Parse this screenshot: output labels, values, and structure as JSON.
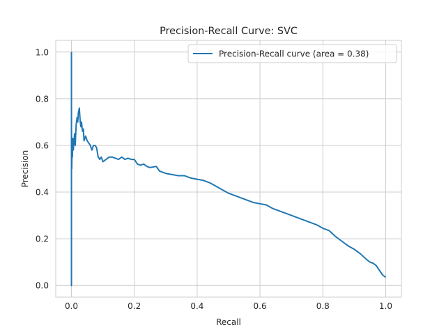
{
  "chart_data": {
    "type": "line",
    "title": "Precision-Recall Curve: SVC",
    "xlabel": "Recall",
    "ylabel": "Precision",
    "xlim": [
      -0.05,
      1.05
    ],
    "ylim": [
      -0.05,
      1.05
    ],
    "xticks": [
      0.0,
      0.2,
      0.4,
      0.6,
      0.8,
      1.0
    ],
    "xtick_labels": [
      "0.0",
      "0.2",
      "0.4",
      "0.6",
      "0.8",
      "1.0"
    ],
    "yticks": [
      0.0,
      0.2,
      0.4,
      0.6,
      0.8,
      1.0
    ],
    "ytick_labels": [
      "0.0",
      "0.2",
      "0.4",
      "0.6",
      "0.8",
      "1.0"
    ],
    "grid": true,
    "legend_position": "top-right",
    "series": [
      {
        "name": "Precision-Recall curve (area = 0.38)",
        "color": "#1f77b4",
        "x": [
          0.0,
          0.0,
          0.0,
          0.001,
          0.002,
          0.003,
          0.004,
          0.006,
          0.008,
          0.01,
          0.012,
          0.015,
          0.018,
          0.02,
          0.022,
          0.025,
          0.027,
          0.028,
          0.03,
          0.032,
          0.035,
          0.038,
          0.04,
          0.045,
          0.05,
          0.055,
          0.06,
          0.065,
          0.07,
          0.075,
          0.08,
          0.085,
          0.09,
          0.095,
          0.1,
          0.11,
          0.12,
          0.13,
          0.14,
          0.15,
          0.16,
          0.17,
          0.18,
          0.19,
          0.2,
          0.21,
          0.22,
          0.23,
          0.24,
          0.25,
          0.27,
          0.28,
          0.3,
          0.32,
          0.34,
          0.36,
          0.38,
          0.4,
          0.42,
          0.44,
          0.46,
          0.48,
          0.5,
          0.52,
          0.54,
          0.56,
          0.58,
          0.6,
          0.62,
          0.64,
          0.66,
          0.68,
          0.7,
          0.72,
          0.74,
          0.76,
          0.78,
          0.8,
          0.82,
          0.84,
          0.86,
          0.88,
          0.9,
          0.92,
          0.94,
          0.95,
          0.96,
          0.97,
          0.98,
          0.99,
          1.0
        ],
        "y": [
          1.0,
          0.0,
          0.67,
          0.5,
          0.6,
          0.55,
          0.63,
          0.58,
          0.62,
          0.65,
          0.6,
          0.69,
          0.72,
          0.7,
          0.74,
          0.76,
          0.72,
          0.7,
          0.68,
          0.7,
          0.66,
          0.67,
          0.62,
          0.64,
          0.62,
          0.61,
          0.6,
          0.58,
          0.6,
          0.6,
          0.59,
          0.55,
          0.54,
          0.55,
          0.53,
          0.54,
          0.55,
          0.55,
          0.545,
          0.54,
          0.55,
          0.54,
          0.545,
          0.54,
          0.54,
          0.52,
          0.515,
          0.52,
          0.51,
          0.505,
          0.51,
          0.49,
          0.48,
          0.475,
          0.47,
          0.47,
          0.46,
          0.455,
          0.45,
          0.44,
          0.425,
          0.41,
          0.395,
          0.385,
          0.375,
          0.365,
          0.355,
          0.35,
          0.345,
          0.33,
          0.32,
          0.31,
          0.3,
          0.29,
          0.28,
          0.27,
          0.26,
          0.245,
          0.235,
          0.21,
          0.19,
          0.17,
          0.155,
          0.135,
          0.11,
          0.1,
          0.095,
          0.085,
          0.065,
          0.045,
          0.035
        ]
      }
    ]
  }
}
